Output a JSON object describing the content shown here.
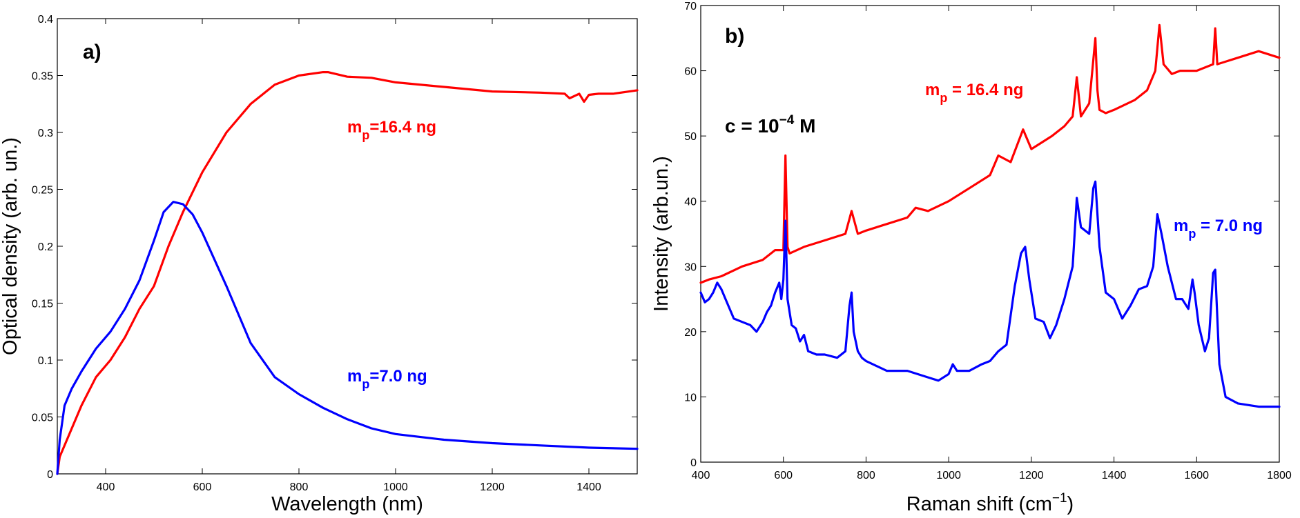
{
  "colors": {
    "red": "#ff0000",
    "blue": "#0000ff"
  },
  "chart_data": [
    {
      "type": "line",
      "panel_label": "a)",
      "xlabel": "Wavelength (nm)",
      "ylabel": "Optical density (arb. un.)",
      "xlim": [
        300,
        1500
      ],
      "ylim": [
        0,
        0.4
      ],
      "xticks": [
        400,
        600,
        800,
        1000,
        1200,
        1400
      ],
      "yticks": [
        0,
        0.05,
        0.1,
        0.15,
        0.2,
        0.25,
        0.3,
        0.35,
        0.4
      ],
      "xtick_labels": [
        "400",
        "600",
        "800",
        "1000",
        "1200",
        "1400"
      ],
      "ytick_labels": [
        "0",
        "0.05",
        "0.1",
        "0.15",
        "0.2",
        "0.25",
        "0.3",
        "0.35",
        "0.4"
      ],
      "annotations": {
        "red": {
          "base": "m",
          "sub": "p",
          "rest": "=16.4 ng"
        },
        "blue": {
          "base": "m",
          "sub": "p",
          "rest": "=7.0 ng"
        }
      },
      "series": [
        {
          "name": "mp=16.4 ng",
          "color": "red",
          "x": [
            300,
            305,
            315,
            330,
            350,
            380,
            410,
            440,
            470,
            500,
            530,
            560,
            600,
            650,
            700,
            750,
            800,
            850,
            860,
            900,
            950,
            1000,
            1100,
            1200,
            1300,
            1350,
            1360,
            1380,
            1390,
            1400,
            1420,
            1450,
            1500
          ],
          "y": [
            0.0,
            0.015,
            0.025,
            0.04,
            0.06,
            0.085,
            0.1,
            0.12,
            0.145,
            0.165,
            0.2,
            0.23,
            0.265,
            0.3,
            0.325,
            0.342,
            0.35,
            0.353,
            0.353,
            0.349,
            0.348,
            0.344,
            0.34,
            0.336,
            0.335,
            0.334,
            0.33,
            0.334,
            0.327,
            0.333,
            0.334,
            0.334,
            0.337
          ]
        },
        {
          "name": "mp=7.0 ng",
          "color": "blue",
          "x": [
            300,
            305,
            315,
            330,
            350,
            380,
            410,
            440,
            470,
            500,
            520,
            540,
            560,
            580,
            600,
            650,
            700,
            750,
            800,
            850,
            900,
            950,
            1000,
            1100,
            1200,
            1300,
            1400,
            1500
          ],
          "y": [
            0.0,
            0.03,
            0.06,
            0.075,
            0.09,
            0.11,
            0.125,
            0.145,
            0.17,
            0.205,
            0.23,
            0.239,
            0.237,
            0.228,
            0.212,
            0.165,
            0.115,
            0.085,
            0.07,
            0.058,
            0.048,
            0.04,
            0.035,
            0.03,
            0.027,
            0.025,
            0.023,
            0.022
          ]
        }
      ]
    },
    {
      "type": "line",
      "panel_label": "b)",
      "xlabel": "Raman shift (cm−1)",
      "xlabel_main": "Raman shift (cm",
      "xlabel_sup": "−1",
      "xlabel_end": ")",
      "ylabel": "Intensity (arb.un.)",
      "xlim": [
        400,
        1800
      ],
      "ylim": [
        0,
        70
      ],
      "xticks": [
        400,
        600,
        800,
        1000,
        1200,
        1400,
        1600,
        1800
      ],
      "yticks": [
        0,
        10,
        20,
        30,
        40,
        50,
        60,
        70
      ],
      "xtick_labels": [
        "400",
        "600",
        "800",
        "1000",
        "1200",
        "1400",
        "1600",
        "1800"
      ],
      "ytick_labels": [
        "0",
        "10",
        "20",
        "30",
        "40",
        "50",
        "60",
        "70"
      ],
      "annotations": {
        "conc": {
          "base": "c = 10",
          "sup": "−4",
          "rest": " M"
        },
        "red": {
          "base": "m",
          "sub": "p",
          "rest": " = 16.4 ng"
        },
        "blue": {
          "base": "m",
          "sub": "p",
          "rest": " = 7.0 ng"
        }
      },
      "series": [
        {
          "name": "mp = 16.4 ng",
          "color": "red",
          "x": [
            400,
            420,
            450,
            500,
            550,
            580,
            600,
            605,
            610,
            615,
            650,
            700,
            750,
            765,
            780,
            800,
            850,
            900,
            920,
            950,
            1000,
            1050,
            1100,
            1120,
            1150,
            1180,
            1200,
            1250,
            1280,
            1300,
            1310,
            1320,
            1340,
            1355,
            1360,
            1365,
            1380,
            1400,
            1450,
            1480,
            1500,
            1510,
            1520,
            1540,
            1560,
            1600,
            1640,
            1645,
            1650,
            1700,
            1750,
            1800
          ],
          "y": [
            27.5,
            28,
            28.5,
            30,
            31,
            32.5,
            32.5,
            47,
            33,
            32,
            33,
            34,
            35,
            38.5,
            35,
            35.5,
            36.5,
            37.5,
            39,
            38.5,
            40,
            42,
            44,
            47,
            46,
            51,
            48,
            50,
            51.5,
            53,
            59,
            53,
            55,
            65,
            57,
            54,
            53.5,
            54,
            55.5,
            57,
            60,
            67,
            61,
            59.5,
            60,
            60,
            61,
            66.5,
            61,
            62,
            63,
            62
          ]
        },
        {
          "name": "mp = 7.0 ng",
          "color": "blue",
          "x": [
            400,
            410,
            420,
            430,
            440,
            450,
            460,
            480,
            500,
            520,
            535,
            550,
            560,
            570,
            580,
            590,
            595,
            600,
            605,
            610,
            620,
            630,
            640,
            650,
            660,
            680,
            700,
            730,
            750,
            760,
            765,
            770,
            780,
            790,
            800,
            850,
            900,
            950,
            975,
            1000,
            1010,
            1020,
            1050,
            1080,
            1100,
            1120,
            1140,
            1160,
            1175,
            1185,
            1195,
            1210,
            1230,
            1245,
            1260,
            1280,
            1300,
            1310,
            1320,
            1340,
            1350,
            1355,
            1365,
            1380,
            1400,
            1420,
            1440,
            1460,
            1480,
            1495,
            1505,
            1515,
            1530,
            1550,
            1565,
            1580,
            1590,
            1595,
            1605,
            1620,
            1630,
            1640,
            1645,
            1655,
            1670,
            1700,
            1750,
            1800
          ],
          "y": [
            26,
            24.5,
            25,
            26,
            27.5,
            26.5,
            25,
            22,
            21.5,
            21,
            20,
            21.5,
            23,
            24,
            26,
            27.5,
            25,
            28,
            37,
            25,
            21,
            20.5,
            18.5,
            19.5,
            17,
            16.5,
            16.5,
            16,
            17,
            24,
            26,
            20,
            17,
            16,
            15.5,
            14,
            14,
            13,
            12.5,
            13.5,
            15,
            14,
            14,
            15,
            15.5,
            17,
            18,
            27,
            32,
            33,
            28,
            22,
            21.5,
            19,
            21,
            25,
            30,
            40.5,
            36,
            35,
            42,
            43,
            33,
            26,
            25,
            22,
            24,
            26.5,
            27,
            30,
            38,
            35,
            30,
            25,
            25,
            23.5,
            28,
            26,
            21,
            17,
            19,
            29,
            29.5,
            15,
            10,
            9,
            8.5,
            8.5
          ]
        }
      ]
    }
  ]
}
